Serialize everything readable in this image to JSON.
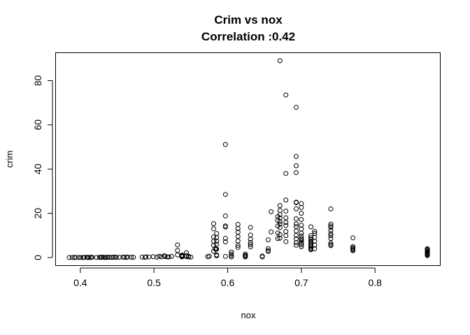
{
  "chart_data": {
    "type": "scatter",
    "title": "Crim vs nox",
    "subtitle": "Correlation :0.42",
    "xlabel": "nox",
    "ylabel": "crim",
    "xlim": [
      0.385,
      0.871
    ],
    "ylim": [
      0.006,
      88.98
    ],
    "xticks": [
      0.4,
      0.5,
      0.6,
      0.7,
      0.8
    ],
    "xtick_labels": [
      "0.4",
      "0.5",
      "0.6",
      "0.7",
      "0.8"
    ],
    "yticks": [
      0,
      20,
      40,
      60,
      80
    ],
    "ytick_labels": [
      "0",
      "20",
      "40",
      "60",
      "80"
    ],
    "grid": false,
    "marker": "open-circle",
    "x": [
      0.385,
      0.389,
      0.392,
      0.394,
      0.398,
      0.401,
      0.404,
      0.405,
      0.409,
      0.41,
      0.411,
      0.413,
      0.415,
      0.416,
      0.422,
      0.426,
      0.428,
      0.429,
      0.431,
      0.433,
      0.435,
      0.437,
      0.439,
      0.442,
      0.445,
      0.447,
      0.449,
      0.453,
      0.458,
      0.46,
      0.463,
      0.464,
      0.469,
      0.472,
      0.484,
      0.488,
      0.489,
      0.493,
      0.499,
      0.504,
      0.507,
      0.51,
      0.514,
      0.515,
      0.518,
      0.52,
      0.524,
      0.532,
      0.532,
      0.532,
      0.538,
      0.538,
      0.538,
      0.538,
      0.538,
      0.544,
      0.544,
      0.544,
      0.547,
      0.547,
      0.55,
      0.573,
      0.575,
      0.581,
      0.581,
      0.581,
      0.581,
      0.581,
      0.581,
      0.583,
      0.584,
      0.585,
      0.585,
      0.585,
      0.585,
      0.585,
      0.585,
      0.585,
      0.597,
      0.597,
      0.597,
      0.597,
      0.597,
      0.597,
      0.597,
      0.597,
      0.605,
      0.605,
      0.605,
      0.605,
      0.614,
      0.614,
      0.614,
      0.614,
      0.614,
      0.614,
      0.614,
      0.624,
      0.624,
      0.624,
      0.624,
      0.631,
      0.631,
      0.631,
      0.631,
      0.631,
      0.631,
      0.647,
      0.647,
      0.655,
      0.655,
      0.655,
      0.655,
      0.659,
      0.659,
      0.668,
      0.668,
      0.668,
      0.668,
      0.668,
      0.671,
      0.671,
      0.671,
      0.671,
      0.671,
      0.671,
      0.671,
      0.671,
      0.671,
      0.671,
      0.679,
      0.679,
      0.679,
      0.679,
      0.679,
      0.679,
      0.679,
      0.679,
      0.679,
      0.679,
      0.693,
      0.693,
      0.693,
      0.693,
      0.693,
      0.693,
      0.693,
      0.693,
      0.693,
      0.693,
      0.693,
      0.693,
      0.693,
      0.693,
      0.693,
      0.7,
      0.7,
      0.7,
      0.7,
      0.7,
      0.7,
      0.7,
      0.7,
      0.7,
      0.7,
      0.7,
      0.7,
      0.7,
      0.7,
      0.713,
      0.713,
      0.713,
      0.713,
      0.713,
      0.713,
      0.713,
      0.713,
      0.713,
      0.713,
      0.713,
      0.713,
      0.718,
      0.718,
      0.718,
      0.718,
      0.718,
      0.718,
      0.74,
      0.74,
      0.74,
      0.74,
      0.74,
      0.74,
      0.74,
      0.74,
      0.74,
      0.74,
      0.74,
      0.77,
      0.77,
      0.77,
      0.77,
      0.77,
      0.77,
      0.871,
      0.871,
      0.871,
      0.871,
      0.871,
      0.871,
      0.871,
      0.871,
      0.871,
      0.871
    ],
    "y": [
      0.02,
      0.05,
      0.03,
      0.06,
      0.04,
      0.02,
      0.05,
      0.09,
      0.11,
      0.04,
      0.03,
      0.06,
      0.08,
      0.12,
      0.05,
      0.09,
      0.13,
      0.07,
      0.15,
      0.1,
      0.05,
      0.18,
      0.12,
      0.08,
      0.16,
      0.2,
      0.1,
      0.13,
      0.22,
      0.17,
      0.08,
      0.25,
      0.18,
      0.12,
      0.2,
      0.14,
      0.3,
      0.26,
      0.4,
      0.18,
      0.55,
      0.35,
      0.8,
      0.45,
      0.3,
      0.28,
      0.52,
      5.7,
      3.2,
      1.2,
      0.8,
      0.3,
      0.5,
      1.1,
      0.6,
      2.2,
      0.4,
      0.9,
      0.3,
      0.5,
      0.2,
      0.4,
      0.6,
      15.3,
      13.0,
      9.3,
      7.4,
      5.5,
      2.8,
      4.0,
      3.7,
      10.9,
      9.0,
      7.4,
      6.0,
      3.8,
      1.2,
      0.8,
      51.1,
      28.5,
      18.8,
      14.3,
      13.8,
      8.7,
      7.1,
      0.5,
      2.5,
      1.6,
      0.9,
      0.3,
      15.0,
      13.1,
      11.5,
      9.5,
      7.5,
      5.5,
      4.6,
      1.5,
      1.0,
      0.6,
      0.3,
      13.6,
      10.2,
      8.3,
      6.8,
      4.8,
      5.8,
      0.7,
      0.3,
      8.0,
      4.0,
      3.1,
      2.8,
      20.7,
      11.6,
      18.5,
      16.8,
      14.3,
      11.1,
      8.6,
      88.98,
      23.5,
      21.3,
      19.4,
      17.9,
      16.3,
      15.1,
      13.6,
      10.4,
      8.8,
      73.5,
      38.0,
      26.0,
      21.0,
      18.0,
      15.9,
      14.5,
      11.8,
      9.9,
      7.2,
      67.9,
      45.7,
      41.5,
      38.4,
      25.0,
      24.8,
      22.0,
      17.5,
      15.2,
      14.0,
      12.0,
      10.0,
      8.5,
      6.8,
      5.6,
      24.4,
      22.6,
      20.0,
      17.2,
      14.6,
      12.9,
      11.0,
      9.7,
      8.6,
      8.0,
      7.4,
      6.5,
      5.8,
      4.9,
      13.9,
      9.9,
      8.9,
      8.2,
      7.5,
      6.9,
      6.2,
      5.6,
      5.0,
      4.4,
      3.9,
      3.5,
      11.8,
      10.9,
      9.1,
      7.4,
      5.6,
      4.0,
      22.0,
      15.1,
      14.3,
      13.6,
      12.2,
      10.8,
      9.9,
      8.6,
      6.5,
      5.8,
      5.4,
      8.9,
      4.9,
      4.4,
      3.9,
      3.5,
      3.1,
      4.0,
      3.6,
      3.2,
      2.8,
      2.5,
      2.1,
      1.8,
      1.5,
      1.2,
      0.9
    ]
  }
}
